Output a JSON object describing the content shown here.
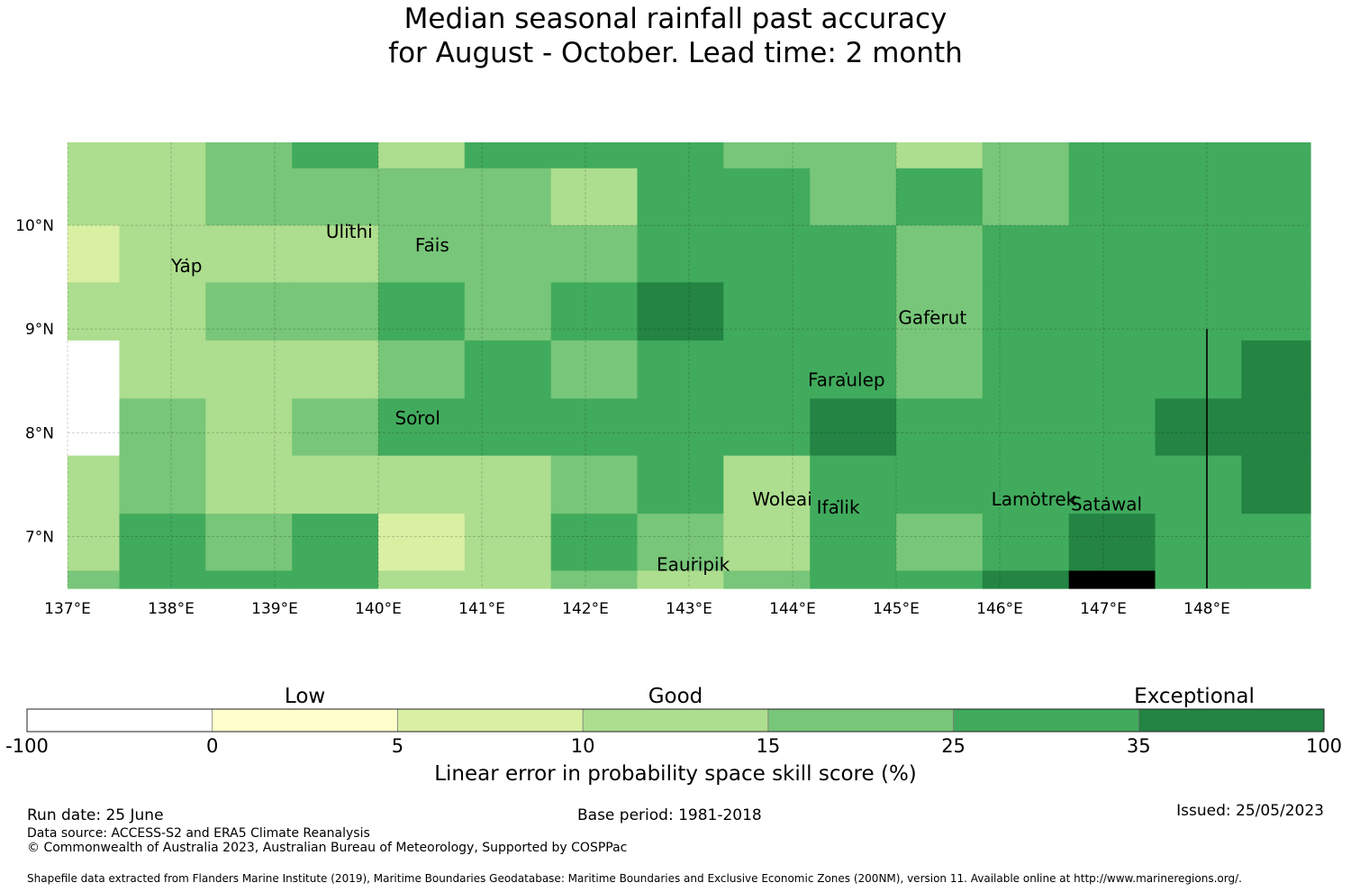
{
  "title": {
    "line1": "Median seasonal rainfall past accuracy",
    "line2": "for August - October. Lead time: 2 month"
  },
  "map": {
    "lon_range": [
      137.0,
      149.0
    ],
    "lat_range": [
      6.5,
      10.8
    ],
    "lon_ticks": [
      {
        "value": 137,
        "label": "137°E"
      },
      {
        "value": 138,
        "label": "138°E"
      },
      {
        "value": 139,
        "label": "139°E"
      },
      {
        "value": 140,
        "label": "140°E"
      },
      {
        "value": 141,
        "label": "141°E"
      },
      {
        "value": 142,
        "label": "142°E"
      },
      {
        "value": 143,
        "label": "143°E"
      },
      {
        "value": 144,
        "label": "144°E"
      },
      {
        "value": 145,
        "label": "145°E"
      },
      {
        "value": 146,
        "label": "146°E"
      },
      {
        "value": 147,
        "label": "147°E"
      },
      {
        "value": 148,
        "label": "148°E"
      }
    ],
    "lat_ticks": [
      {
        "value": 10,
        "label": "10°N"
      },
      {
        "value": 9,
        "label": "9°N"
      },
      {
        "value": 8,
        "label": "8°N"
      },
      {
        "value": 7,
        "label": "7°N"
      }
    ],
    "places": [
      {
        "name": "Yap",
        "lon": 138.15,
        "lat": 9.55
      },
      {
        "name": "Ulithi",
        "lon": 139.72,
        "lat": 9.88
      },
      {
        "name": "Fais",
        "lon": 140.52,
        "lat": 9.75
      },
      {
        "name": "Gaferut",
        "lon": 145.35,
        "lat": 9.05
      },
      {
        "name": "Faraulep",
        "lon": 144.52,
        "lat": 8.45
      },
      {
        "name": "Sorol",
        "lon": 140.38,
        "lat": 8.08
      },
      {
        "name": "Woleai",
        "lon": 143.9,
        "lat": 7.3
      },
      {
        "name": "Ifalik",
        "lon": 144.44,
        "lat": 7.22
      },
      {
        "name": "Lamotrek",
        "lon": 146.33,
        "lat": 7.3
      },
      {
        "name": "Satawal",
        "lon": 147.03,
        "lat": 7.25
      },
      {
        "name": "Eauripik",
        "lon": 143.04,
        "lat": 6.67
      }
    ],
    "boundary_lon": 148.0,
    "boundary_lat_top": 9.0
  },
  "grid": {
    "lon_edges": [
      137.0,
      137.5,
      138.333,
      139.167,
      140.0,
      140.833,
      141.667,
      142.5,
      143.333,
      144.167,
      145.0,
      145.833,
      146.667,
      147.5,
      148.333,
      149.0
    ],
    "lat_edges": [
      10.8,
      10.55,
      10.0,
      9.45,
      8.89,
      8.33,
      7.78,
      7.22,
      6.67,
      6.5
    ],
    "rows": [
      [
        3,
        3,
        4,
        5,
        3,
        5,
        5,
        5,
        4,
        4,
        3,
        4,
        5,
        5,
        5
      ],
      [
        3,
        3,
        4,
        4,
        4,
        4,
        3,
        5,
        5,
        4,
        5,
        4,
        5,
        5,
        5
      ],
      [
        2,
        3,
        3,
        3,
        4,
        4,
        4,
        5,
        5,
        5,
        4,
        5,
        5,
        5,
        5
      ],
      [
        3,
        3,
        4,
        4,
        5,
        4,
        5,
        6,
        5,
        5,
        4,
        5,
        5,
        5,
        5
      ],
      [
        0,
        3,
        3,
        3,
        4,
        5,
        4,
        5,
        5,
        5,
        4,
        5,
        5,
        5,
        6
      ],
      [
        0,
        4,
        3,
        4,
        5,
        5,
        5,
        5,
        5,
        6,
        5,
        5,
        5,
        6,
        6
      ],
      [
        3,
        4,
        3,
        3,
        3,
        3,
        4,
        5,
        3,
        5,
        5,
        5,
        5,
        5,
        6
      ],
      [
        3,
        5,
        4,
        5,
        2,
        3,
        5,
        4,
        3,
        5,
        4,
        5,
        6,
        5,
        5
      ],
      [
        4,
        5,
        5,
        5,
        3,
        3,
        4,
        3,
        4,
        5,
        5,
        6,
        7,
        5,
        5
      ]
    ]
  },
  "colorbar": {
    "ticks": [
      "-100",
      "0",
      "5",
      "10",
      "15",
      "25",
      "35",
      "100"
    ],
    "colors": [
      "#ffffff",
      "#ffffcc",
      "#d9f0a3",
      "#addd8e",
      "#78c679",
      "#41ab5d",
      "#238443"
    ],
    "categories": [
      {
        "label": "Low",
        "pos": 1.5
      },
      {
        "label": "Good",
        "pos": 3.5
      },
      {
        "label": "Exceptional",
        "pos": 6.3
      }
    ],
    "label": "Linear error in probability space skill score (%)"
  },
  "footer": {
    "run_date": "Run date: 25 June",
    "base_period": "Base period: 1981-2018",
    "issued": "Issued: 25/05/2023",
    "data_source": "Data source: ACCESS-S2 and ERA5 Climate Reanalysis",
    "copyright": "© Commonwealth of Australia 2023, Australian Bureau of Meteorology, Supported by COSPPac",
    "shapefile": "Shapefile data extracted from Flanders Marine Institute (2019), Maritime Boundaries Geodatabase: Maritime Boundaries and Exclusive Economic Zones (200NM), version 11. Available online at http://www.marineregions.org/."
  }
}
